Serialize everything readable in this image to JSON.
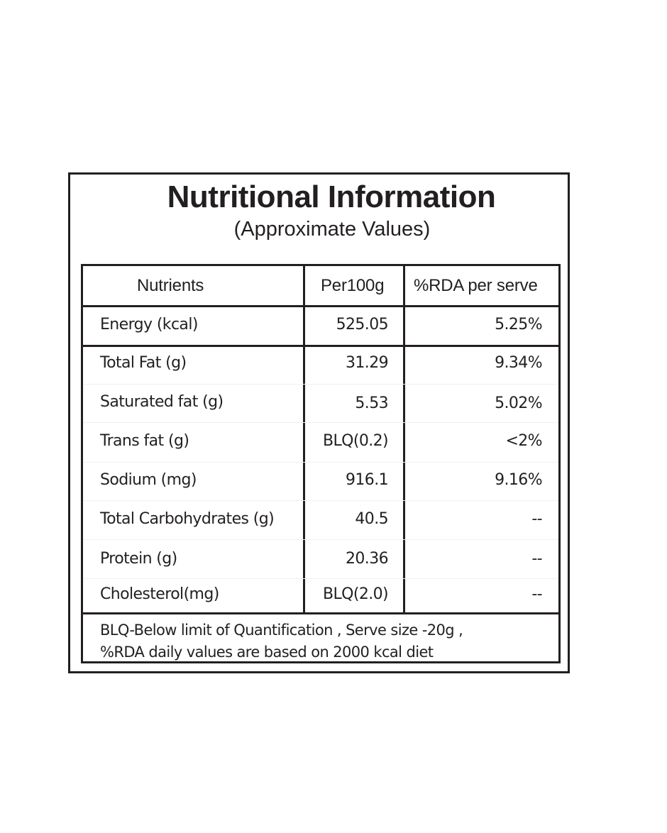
{
  "title": "Nutritional Information",
  "subtitle": "(Approximate Values)",
  "table": {
    "headers": {
      "nutrients": "Nutrients",
      "per100g": "Per100g",
      "rda": "%RDA per serve"
    },
    "rows": [
      {
        "nutrient": "Energy (kcal)",
        "per100g": "525.05",
        "rda": "5.25%"
      },
      {
        "nutrient": "Total Fat (g)",
        "per100g": "31.29",
        "rda": "9.34%"
      },
      {
        "nutrient": "Saturated fat (g)",
        "per100g": "5.53",
        "rda": "5.02%"
      },
      {
        "nutrient": "Trans fat (g)",
        "per100g": "BLQ(0.2)",
        "rda": "<2%"
      },
      {
        "nutrient": "Sodium (mg)",
        "per100g": "916.1",
        "rda": "9.16%"
      },
      {
        "nutrient": "Total Carbohydrates (g)",
        "per100g": "40.5",
        "rda": "--"
      },
      {
        "nutrient": "Protein (g)",
        "per100g": "20.36",
        "rda": "--"
      },
      {
        "nutrient": "Cholesterol(mg)",
        "per100g": "BLQ(2.0)",
        "rda": "--"
      }
    ],
    "footnote_line1": "BLQ-Below limit of Quantification , Serve size -20g ,",
    "footnote_line2": "%RDA daily values are based on 2000 kcal diet"
  }
}
